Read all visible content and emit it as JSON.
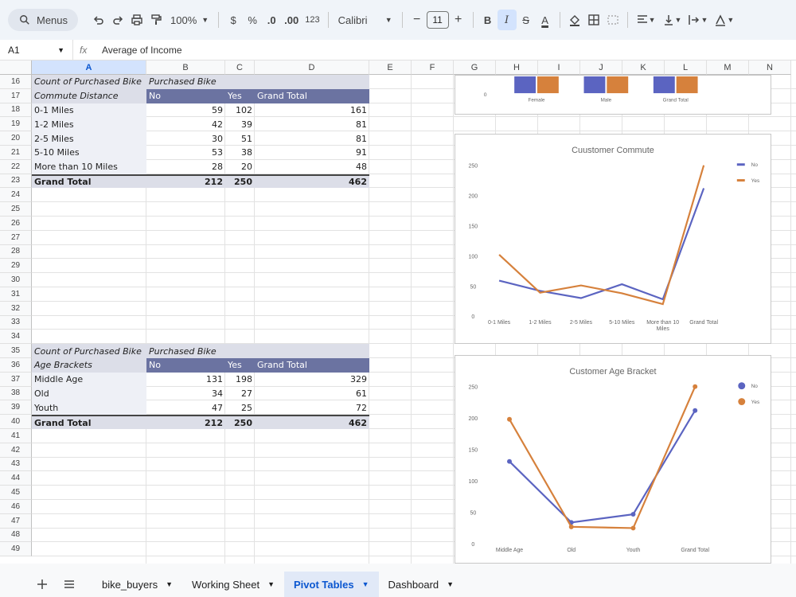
{
  "toolbar": {
    "menus_label": "Menus",
    "zoom": "100%",
    "currency": "$",
    "percent": "%",
    "dec_decrease": ".0",
    "dec_increase": ".00",
    "number_format": "123",
    "font": "Calibri",
    "font_size": "11",
    "minus": "−",
    "plus": "+",
    "bold": "B",
    "italic": "I",
    "strike": "S",
    "text_color": "A"
  },
  "formula_bar": {
    "name_box": "A1",
    "fx": "fx",
    "content": "Average of Income"
  },
  "columns": [
    "A",
    "B",
    "C",
    "D",
    "E",
    "F",
    "G",
    "H",
    "I",
    "J",
    "K",
    "L",
    "M",
    "N"
  ],
  "rows": [
    "16",
    "17",
    "18",
    "19",
    "20",
    "21",
    "22",
    "23",
    "24",
    "25",
    "26",
    "27",
    "28",
    "29",
    "30",
    "31",
    "32",
    "33",
    "34",
    "35",
    "36",
    "37",
    "38",
    "39",
    "40",
    "41",
    "42",
    "43",
    "44",
    "45",
    "46",
    "47",
    "48",
    "49"
  ],
  "pivot_commute": {
    "title_a": "Count of Purchased Bike",
    "title_b": "Purchased Bike",
    "row_label": "Commute Distance",
    "col_no": "No",
    "col_yes": "Yes",
    "col_total": "Grand Total",
    "rows": [
      {
        "label": "0-1 Miles",
        "no": "59",
        "yes": "102",
        "total": "161"
      },
      {
        "label": "1-2 Miles",
        "no": "42",
        "yes": "39",
        "total": "81"
      },
      {
        "label": "2-5 Miles",
        "no": "30",
        "yes": "51",
        "total": "81"
      },
      {
        "label": "5-10 Miles",
        "no": "53",
        "yes": "38",
        "total": "91"
      },
      {
        "label": "More than 10 Miles",
        "no": "28",
        "yes": "20",
        "total": "48"
      }
    ],
    "grand": {
      "label": "Grand Total",
      "no": "212",
      "yes": "250",
      "total": "462"
    }
  },
  "pivot_age": {
    "title_a": "Count of Purchased Bike",
    "title_b": "Purchased Bike",
    "row_label": "Age Brackets",
    "col_no": "No",
    "col_yes": "Yes",
    "col_total": "Grand Total",
    "rows": [
      {
        "label": "Middle Age",
        "no": "131",
        "yes": "198",
        "total": "329"
      },
      {
        "label": "Old",
        "no": "34",
        "yes": "27",
        "total": "61"
      },
      {
        "label": "Youth",
        "no": "47",
        "yes": "25",
        "total": "72"
      }
    ],
    "grand": {
      "label": "Grand Total",
      "no": "212",
      "yes": "250",
      "total": "462"
    }
  },
  "colors": {
    "no": "#5b64c1",
    "yes": "#d6813c"
  },
  "chart_data": [
    {
      "type": "bar",
      "title": "",
      "categories": [
        "Female",
        "Male",
        "Grand Total"
      ],
      "y_label_visible": "0",
      "series": [
        {
          "values": [
            null,
            null,
            null
          ]
        },
        {
          "values": [
            null,
            null,
            null
          ]
        }
      ]
    },
    {
      "type": "line",
      "title": "Cuustomer Commute",
      "categories": [
        "0-1 Miles",
        "1-2 Miles",
        "2-5 Miles",
        "5-10 Miles",
        "More than 10 Miles",
        "Grand Total"
      ],
      "ylim": [
        0,
        250
      ],
      "yticks": [
        "0",
        "50",
        "100",
        "150",
        "200",
        "250"
      ],
      "legend_position": "top-right",
      "series": [
        {
          "name": "No",
          "values": [
            59,
            42,
            30,
            53,
            28,
            212
          ]
        },
        {
          "name": "Yes",
          "values": [
            102,
            39,
            51,
            38,
            20,
            250
          ]
        }
      ]
    },
    {
      "type": "line",
      "title": "Customer Age Bracket",
      "categories": [
        "Middle Age",
        "Old",
        "Youth",
        "Grand Total"
      ],
      "ylim": [
        0,
        250
      ],
      "yticks": [
        "0",
        "50",
        "100",
        "150",
        "200",
        "250"
      ],
      "legend_position": "top-right",
      "series": [
        {
          "name": "No",
          "values": [
            131,
            34,
            47,
            212
          ]
        },
        {
          "name": "Yes",
          "values": [
            198,
            27,
            25,
            250
          ]
        }
      ]
    }
  ],
  "sheet_tabs": [
    {
      "label": "bike_buyers",
      "active": false
    },
    {
      "label": "Working Sheet",
      "active": false
    },
    {
      "label": "Pivot Tables",
      "active": true
    },
    {
      "label": "Dashboard",
      "active": false
    }
  ]
}
